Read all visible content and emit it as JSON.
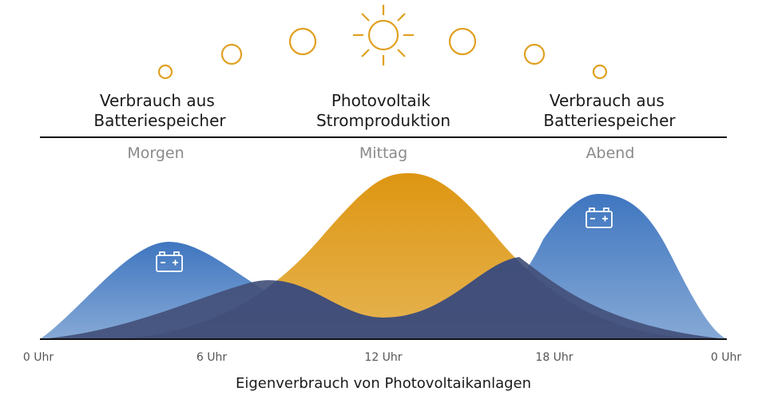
{
  "headings": {
    "left": [
      "Verbrauch aus",
      "Batteriespeicher"
    ],
    "center": [
      "Photovoltaik",
      "Stromproduktion"
    ],
    "right": [
      "Verbrauch aus",
      "Batteriespeicher"
    ]
  },
  "periods": {
    "morning": "Morgen",
    "noon": "Mittag",
    "evening": "Abend"
  },
  "x_ticks": [
    "0 Uhr",
    "6 Uhr",
    "12 Uhr",
    "18 Uhr",
    "0 Uhr"
  ],
  "caption": "Eigenverbrauch von Photovoltaikanlagen",
  "colors": {
    "sun": "#e0a020",
    "solar_top": "#de9612",
    "solar_bottom": "#e6b452",
    "battery_top": "#3f76c0",
    "battery_bottom": "#86a9d6",
    "overlap": "#3d4f7a",
    "axis": "#111111"
  },
  "icons": {
    "sun": "sun-icon",
    "battery": "battery-icon"
  }
}
